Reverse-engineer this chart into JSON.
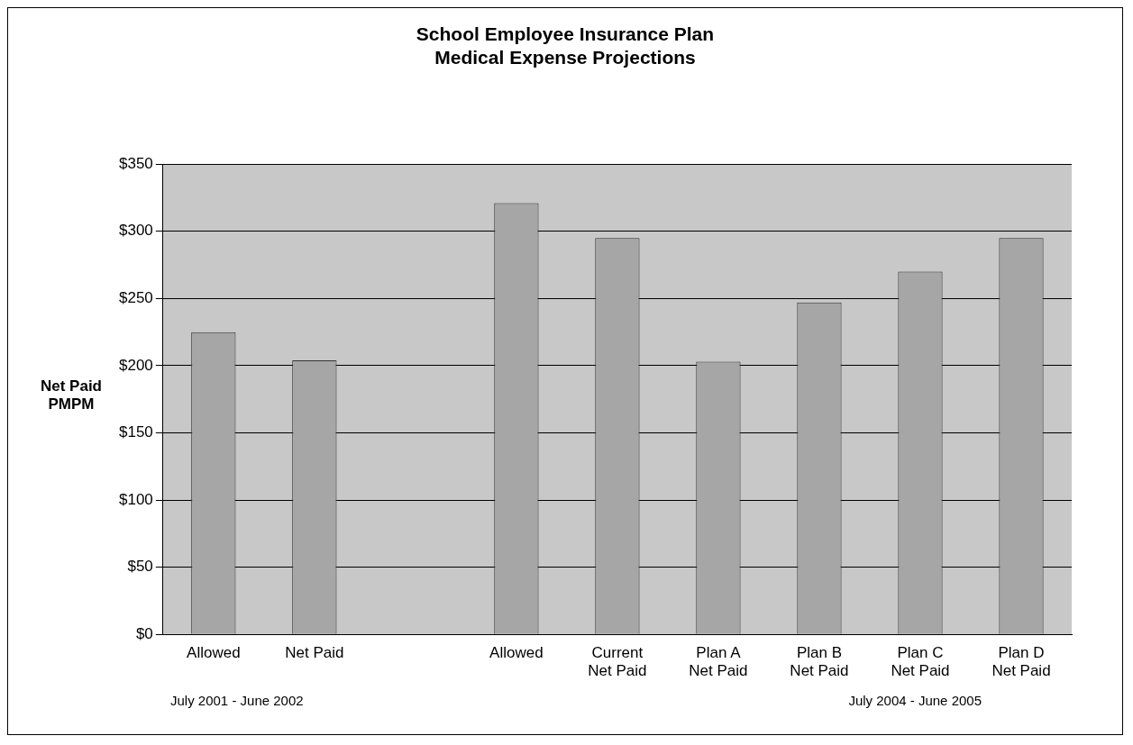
{
  "chart_data": {
    "type": "bar",
    "title": "School Employee Insurance Plan\nMedical Expense Projections",
    "ylabel": "Net Paid\nPMPM",
    "categories": [
      "Allowed",
      "Net Paid",
      null,
      "Allowed",
      "Current\nNet Paid",
      "Plan A\nNet Paid",
      "Plan B\nNet Paid",
      "Plan C\nNet Paid",
      "Plan D\nNet Paid"
    ],
    "values": [
      225,
      204,
      null,
      321,
      295,
      203,
      247,
      270,
      295
    ],
    "color": "#a6a6a6",
    "ylim": [
      0,
      350
    ],
    "yticks": [
      {
        "value": 0,
        "label": "$0"
      },
      {
        "value": 50,
        "label": "$50"
      },
      {
        "value": 100,
        "label": "$100"
      },
      {
        "value": 150,
        "label": "$150"
      },
      {
        "value": 200,
        "label": "$200"
      },
      {
        "value": 250,
        "label": "$250"
      },
      {
        "value": 300,
        "label": "$300"
      },
      {
        "value": 350,
        "label": "$350"
      }
    ],
    "grid": "y",
    "legend": false,
    "annotations": [
      "July 2001 - June 2002",
      "July 2004 - June 2005"
    ]
  }
}
